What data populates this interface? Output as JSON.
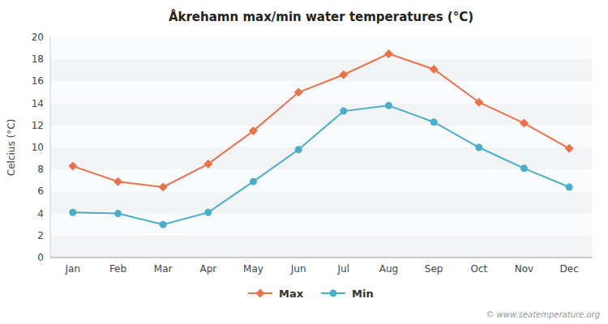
{
  "chart_data": {
    "type": "line",
    "title": "Åkrehamn max/min water temperatures (°C)",
    "y_label": "Celcius (°C)",
    "categories": [
      "Jan",
      "Feb",
      "Mar",
      "Apr",
      "May",
      "Jun",
      "Jul",
      "Aug",
      "Sep",
      "Oct",
      "Nov",
      "Dec"
    ],
    "series": [
      {
        "name": "Max",
        "color": "#e8724b",
        "marker": "diamond",
        "values": [
          8.3,
          6.9,
          6.4,
          8.5,
          11.5,
          15.0,
          16.6,
          18.5,
          17.1,
          14.1,
          12.2,
          9.9
        ]
      },
      {
        "name": "Min",
        "color": "#4aaec9",
        "marker": "circle",
        "values": [
          4.1,
          4.0,
          3.0,
          4.1,
          6.9,
          9.8,
          13.3,
          13.8,
          12.3,
          10.0,
          8.1,
          6.4
        ]
      }
    ],
    "ylim": [
      0,
      20
    ],
    "yticks": [
      0,
      2,
      4,
      6,
      8,
      10,
      12,
      14,
      16,
      18,
      20
    ],
    "grid": false,
    "legend": "bottom",
    "annotations": [
      "© www.seatemperature.org"
    ]
  }
}
